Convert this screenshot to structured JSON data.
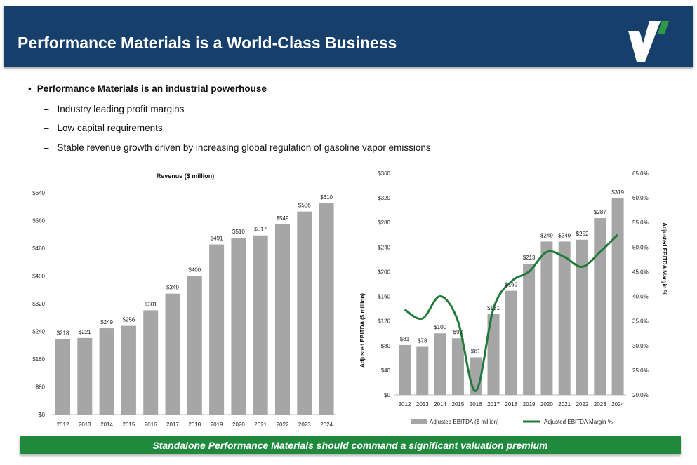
{
  "header": {
    "title": "Performance Materials is a World-Class Business"
  },
  "bullets": {
    "main": "Performance Materials is an industrial powerhouse",
    "subs": [
      "Industry leading profit margins",
      "Low capital requirements",
      "Stable revenue growth driven by increasing global regulation of gasoline vapor emissions"
    ]
  },
  "banner": {
    "text": "Standalone Performance Materials should command a significant valuation premium"
  },
  "colors": {
    "header_bg": "#16406b",
    "bar": "#a6a6a6",
    "line": "#217a3a",
    "banner_bg": "#1f8a3c"
  },
  "chart_data": [
    {
      "type": "bar",
      "title": "Revenue ($ million)",
      "categories": [
        "2012",
        "2013",
        "2014",
        "2015",
        "2016",
        "2017",
        "2018",
        "2019",
        "2020",
        "2021",
        "2022",
        "2023",
        "2024"
      ],
      "values": [
        218,
        221,
        249,
        256,
        301,
        349,
        400,
        491,
        510,
        517,
        549,
        586,
        610
      ],
      "data_labels": [
        "$218",
        "$221",
        "$249",
        "$256",
        "$301",
        "$349",
        "$400",
        "$491",
        "$510",
        "$517",
        "$549",
        "$586",
        "$610"
      ],
      "ylim": [
        0,
        640
      ],
      "yticks": [
        0,
        80,
        160,
        240,
        320,
        400,
        480,
        560,
        640
      ],
      "ytick_labels": [
        "$0",
        "$80",
        "$160",
        "$240",
        "$320",
        "$400",
        "$480",
        "$560",
        "$640"
      ],
      "xlabel": "",
      "ylabel": ""
    },
    {
      "type": "bar+line",
      "title": "",
      "categories": [
        "2012",
        "2013",
        "2014",
        "2015",
        "2016",
        "2017",
        "2018",
        "2019",
        "2020",
        "2021",
        "2022",
        "2023",
        "2024"
      ],
      "bars": {
        "name": "Adjusted EBITDA ($ million)",
        "values": [
          81,
          78,
          100,
          92,
          61,
          131,
          169,
          213,
          249,
          249,
          252,
          287,
          319
        ],
        "data_labels": [
          "$81",
          "$78",
          "$100",
          "$92",
          "$61",
          "$131",
          "$169",
          "$213",
          "$249",
          "$249",
          "$252",
          "$287",
          "$319"
        ]
      },
      "line": {
        "name": "Adjusted EBITDA Margin %",
        "values": [
          37.3,
          35.5,
          40.0,
          35.0,
          20.8,
          37.5,
          43.0,
          45.0,
          49.0,
          48.0,
          46.0,
          49.0,
          52.5
        ]
      },
      "ylim_left": [
        0,
        360
      ],
      "yticks_left": [
        0,
        40,
        80,
        120,
        160,
        200,
        240,
        280,
        320,
        360
      ],
      "ytick_labels_left": [
        "$0",
        "$40",
        "$80",
        "$120",
        "$160",
        "$200",
        "$240",
        "$280",
        "$320",
        "$360"
      ],
      "ylabel_left": "Adjusted EBITDA ($ million)",
      "ylim_right": [
        20,
        65
      ],
      "yticks_right": [
        20,
        25,
        30,
        35,
        40,
        45,
        50,
        55,
        60,
        65
      ],
      "ytick_labels_right": [
        "20.0%",
        "25.0%",
        "30.0%",
        "35.0%",
        "40.0%",
        "45.0%",
        "50.0%",
        "55.0%",
        "60.0%",
        "65.0%"
      ],
      "ylabel_right": "Adjusted EBITDA Margin %",
      "legend": [
        "Adjusted EBITDA ($ million)",
        "Adjusted EBITDA Margin %"
      ],
      "legend_position": "bottom"
    }
  ]
}
